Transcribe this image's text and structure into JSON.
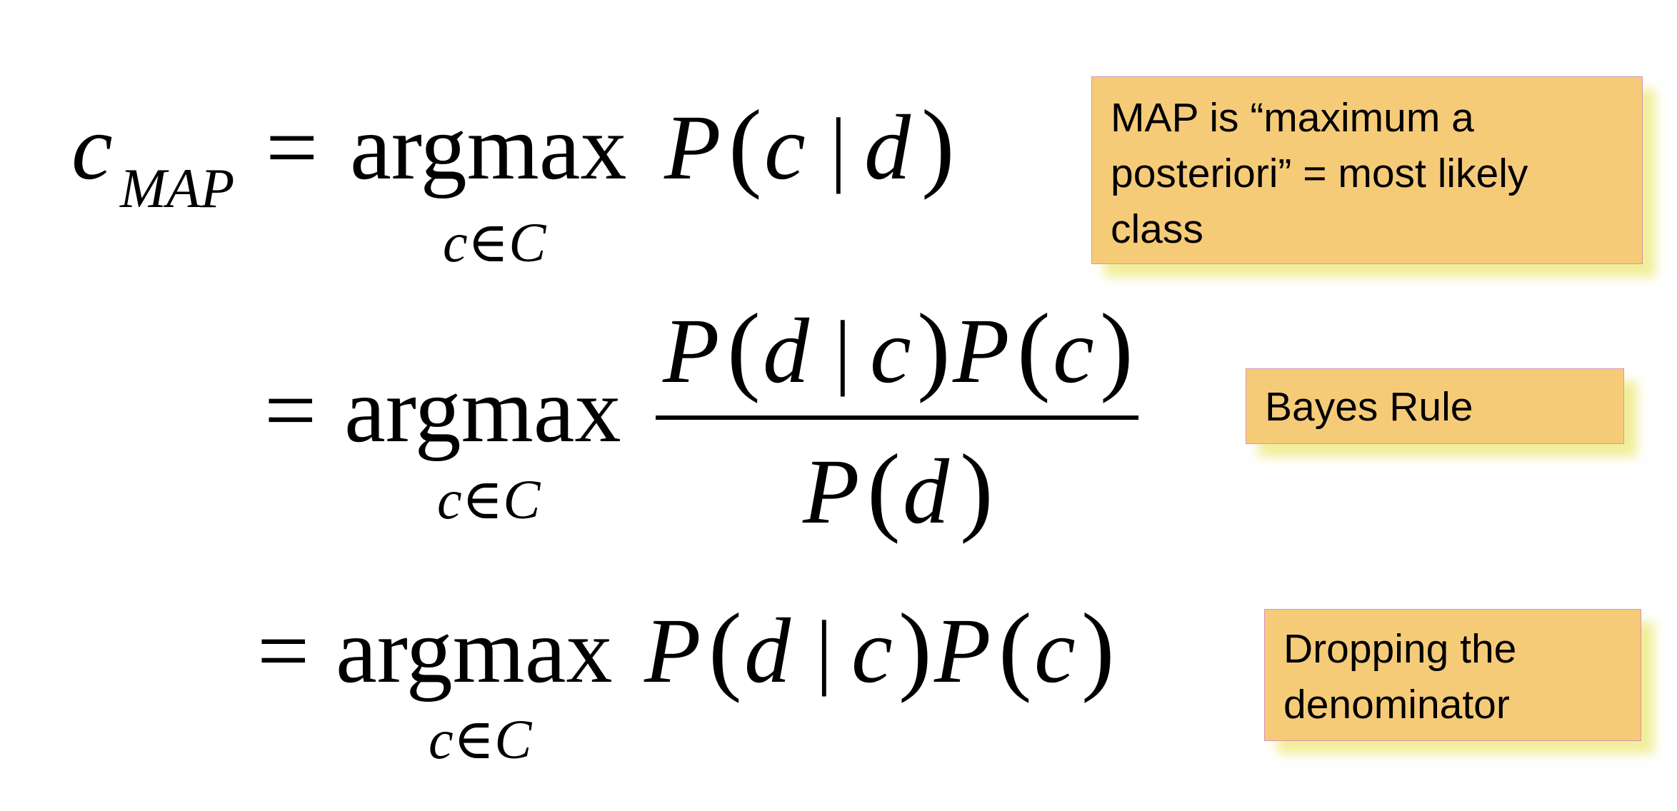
{
  "equation": {
    "line1": {
      "lhs_var": "c",
      "lhs_subscript": "MAP",
      "equals": "=",
      "operator": "argmax",
      "operator_subscript": "c∈C",
      "expr_P": "P",
      "expr_open": "(",
      "expr_c": "c",
      "expr_bar": "|",
      "expr_d": "d",
      "expr_close": ")"
    },
    "line2": {
      "equals": "=",
      "operator": "argmax",
      "operator_subscript": "c∈C",
      "num_P1": "P",
      "num_open1": "(",
      "num_d": "d",
      "num_bar": "|",
      "num_c1": "c",
      "num_close1": ")",
      "num_P2": "P",
      "num_open2": "(",
      "num_c2": "c",
      "num_close2": ")",
      "den_P": "P",
      "den_open": "(",
      "den_d": "d",
      "den_close": ")"
    },
    "line3": {
      "equals": "=",
      "operator": "argmax",
      "operator_subscript": "c∈C",
      "P1": "P",
      "open1": "(",
      "d": "d",
      "bar": "|",
      "c1": "c",
      "close1": ")",
      "P2": "P",
      "open2": "(",
      "c2": "c",
      "close2": ")"
    }
  },
  "notes": {
    "map": {
      "line1": "MAP is “maximum a",
      "line2": "posteriori”  = most likely",
      "line3": "class"
    },
    "bayes": {
      "text": "Bayes Rule"
    },
    "dropping": {
      "line1": "Dropping the",
      "line2": "denominator"
    }
  },
  "colors": {
    "note_fill": "#f6cb78",
    "note_border": "#d891b8",
    "note_shadow": "#e6e046"
  }
}
